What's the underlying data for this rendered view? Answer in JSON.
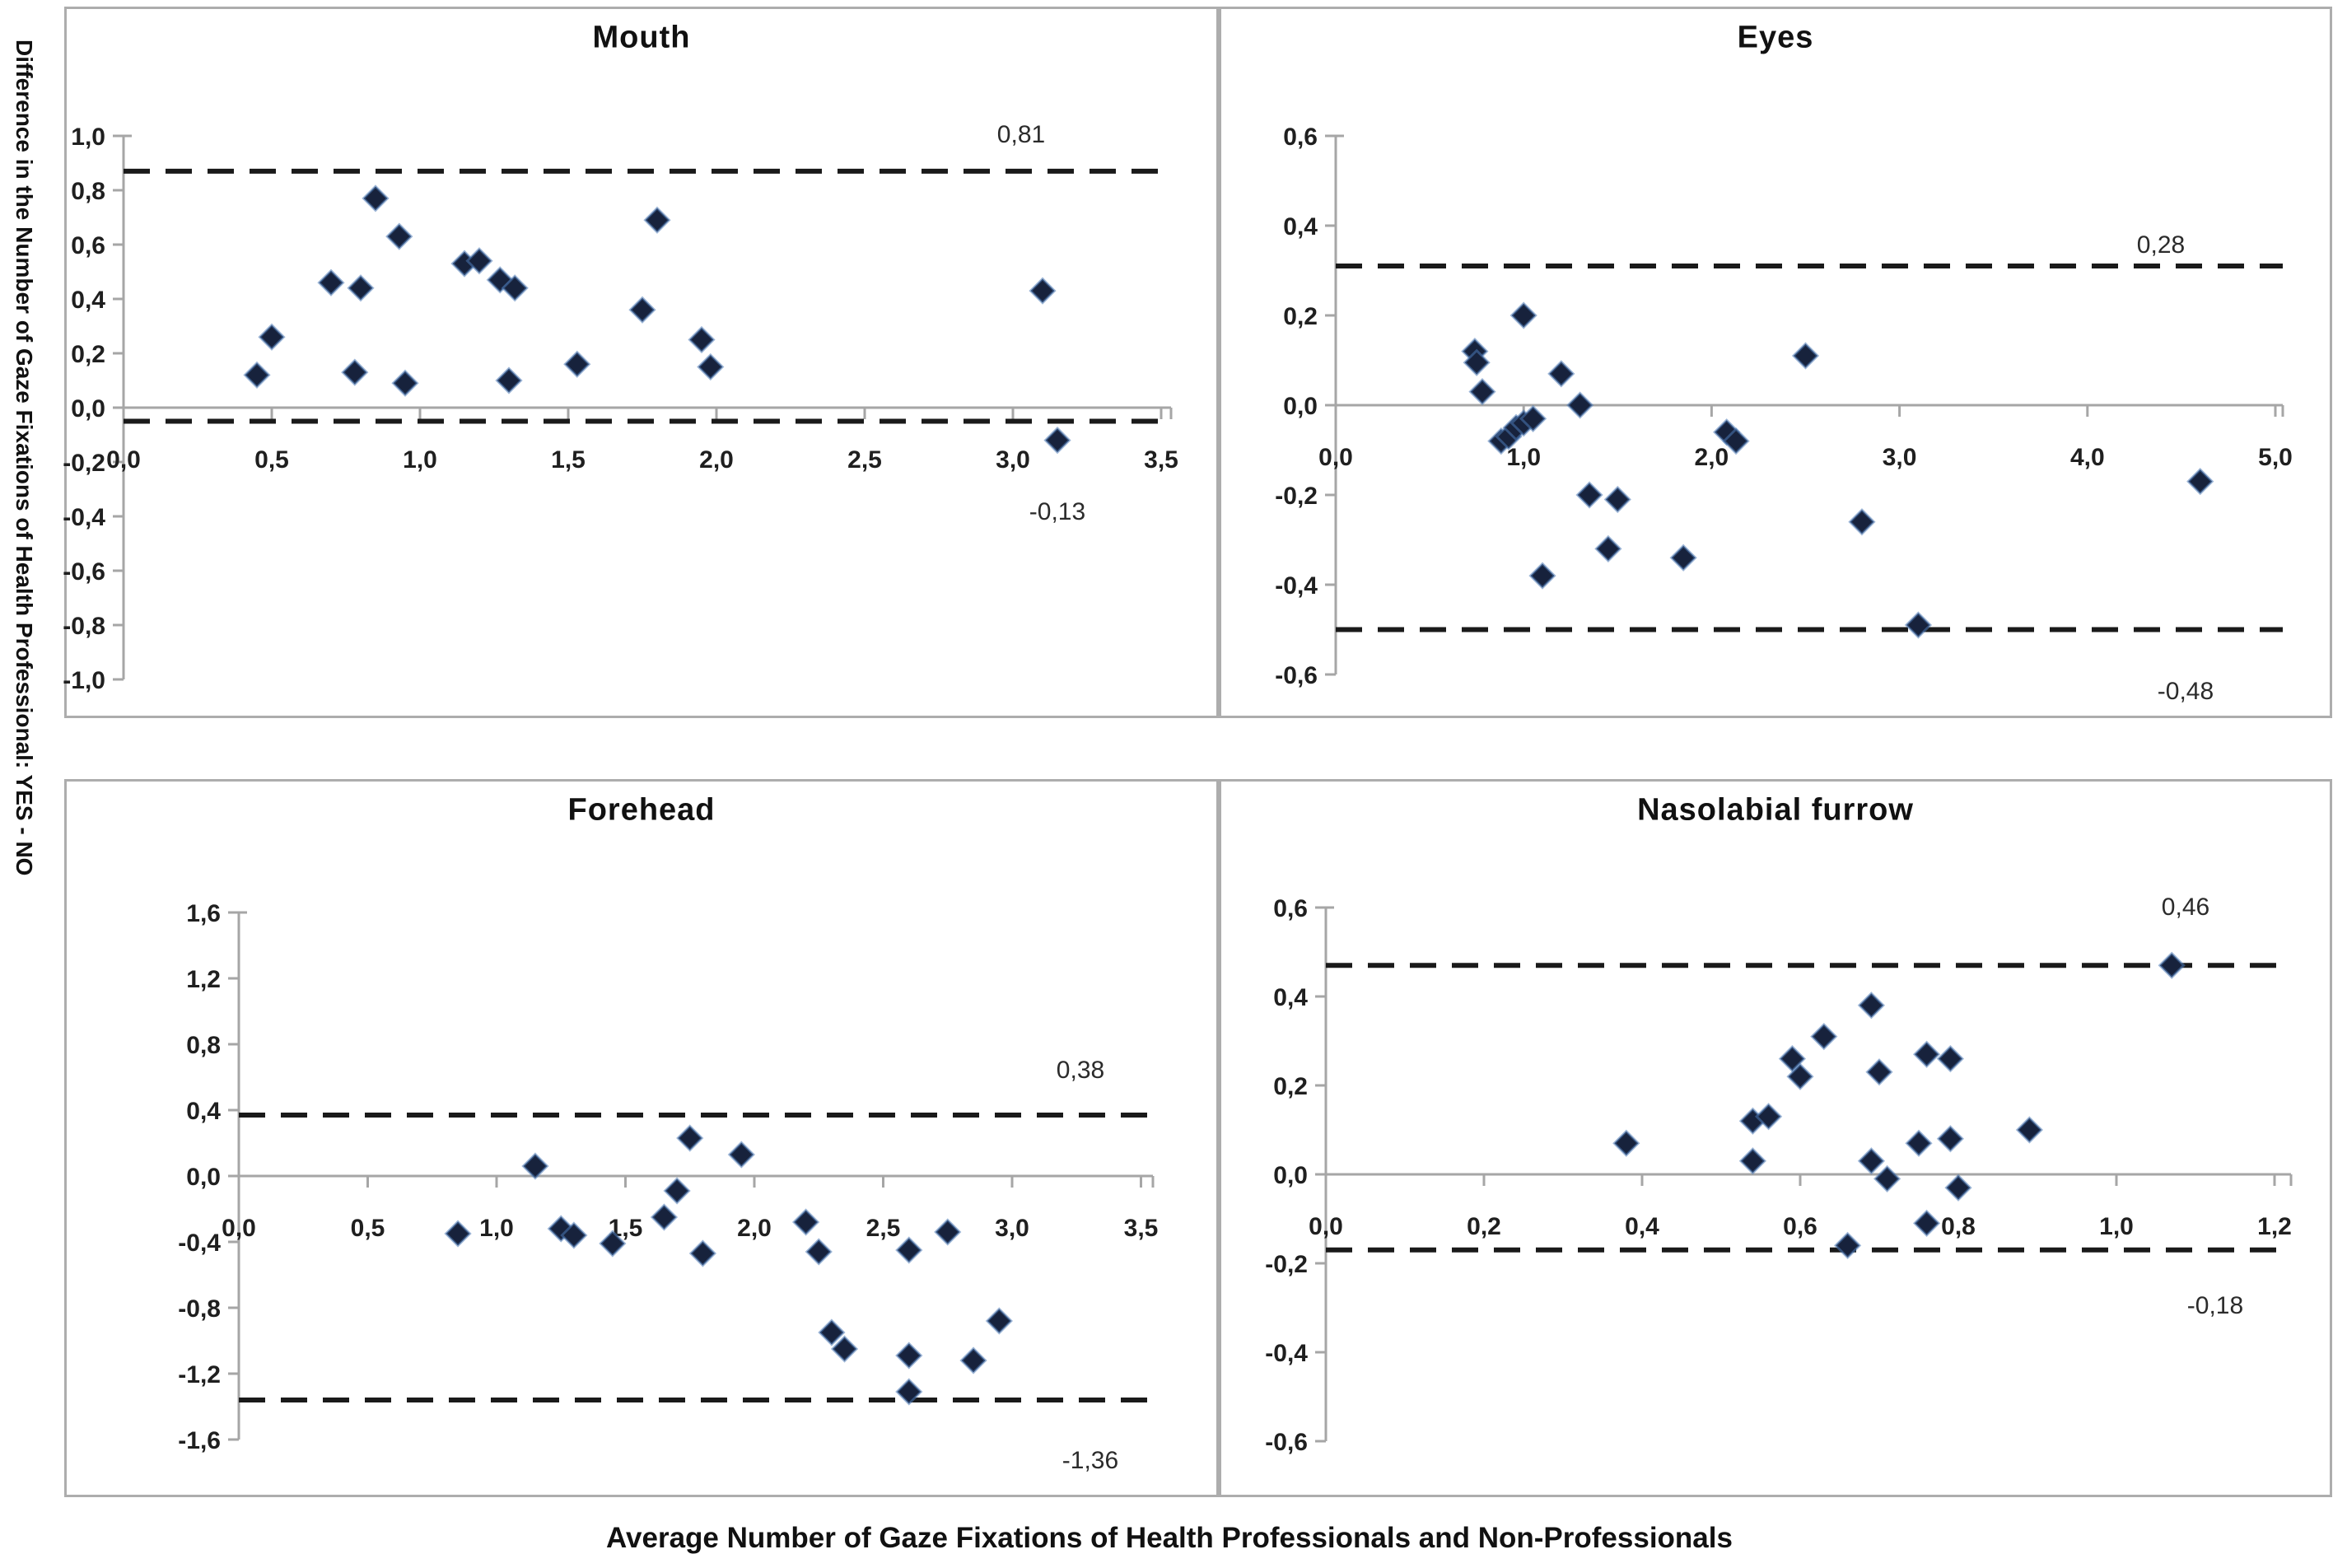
{
  "figure": {
    "y_axis_label": "Difference in the Number of Gaze Fixations of Health Professional: YES - NO",
    "x_axis_label": "Average Number of Gaze Fixations of Health Professionals and Non-Professionals",
    "marker_shape": "diamond",
    "marker_color": "#17223c",
    "marker_halo_color": "#4a79b5",
    "dashed_line_color": "#1a1a1a",
    "axis_color": "#a6a6a6",
    "decimal_separator": "comma"
  },
  "chart_data": [
    {
      "type": "scatter",
      "title": "Mouth",
      "x_axis": {
        "min": 0.0,
        "max": 3.5,
        "step": 0.5
      },
      "y_axis": {
        "min": -1.0,
        "max": 1.0,
        "step": 0.2
      },
      "x_ticks": [
        "0,0",
        "0,5",
        "1,0",
        "1,5",
        "2,0",
        "2,5",
        "3,0",
        "3,5"
      ],
      "y_ticks": [
        "1,0",
        "0,8",
        "0,6",
        "0,4",
        "0,2",
        "0,0",
        "-0,2",
        "-0,4",
        "-0,6",
        "-0,8",
        "-1,0"
      ],
      "mean_line": 0.0,
      "upper_limit": {
        "value": 0.81,
        "label": "0,81",
        "line_y": 0.87
      },
      "lower_limit": {
        "value": -0.13,
        "label": "-0,13",
        "line_y": -0.05
      },
      "points": [
        [
          0.45,
          0.12
        ],
        [
          0.5,
          0.26
        ],
        [
          0.7,
          0.46
        ],
        [
          0.78,
          0.13
        ],
        [
          0.8,
          0.44
        ],
        [
          0.85,
          0.77
        ],
        [
          0.93,
          0.63
        ],
        [
          0.95,
          0.09
        ],
        [
          1.15,
          0.53
        ],
        [
          1.2,
          0.54
        ],
        [
          1.27,
          0.47
        ],
        [
          1.32,
          0.44
        ],
        [
          1.3,
          0.1
        ],
        [
          1.53,
          0.16
        ],
        [
          1.75,
          0.36
        ],
        [
          1.8,
          0.69
        ],
        [
          1.95,
          0.25
        ],
        [
          1.98,
          0.15
        ],
        [
          3.1,
          0.43
        ],
        [
          3.15,
          -0.12
        ]
      ]
    },
    {
      "type": "scatter",
      "title": "Eyes",
      "x_axis": {
        "min": 0.0,
        "max": 5.0,
        "step": 1.0
      },
      "y_axis": {
        "min": -0.6,
        "max": 0.6,
        "step": 0.2
      },
      "x_ticks": [
        "0,0",
        "1,0",
        "2,0",
        "3,0",
        "4,0",
        "5,0"
      ],
      "y_ticks": [
        "0,6",
        "0,4",
        "0,2",
        "0,0",
        "-0,2",
        "-0,4",
        "-0,6"
      ],
      "mean_line": 0.0,
      "upper_limit": {
        "value": 0.28,
        "label": "0,28",
        "line_y": 0.31
      },
      "lower_limit": {
        "value": -0.48,
        "label": "-0,48",
        "line_y": -0.5
      },
      "points": [
        [
          0.74,
          0.12
        ],
        [
          0.75,
          0.095
        ],
        [
          0.78,
          0.03
        ],
        [
          1.0,
          0.2
        ],
        [
          0.88,
          -0.08
        ],
        [
          0.92,
          -0.07
        ],
        [
          0.96,
          -0.05
        ],
        [
          1.0,
          -0.04
        ],
        [
          1.05,
          -0.03
        ],
        [
          1.2,
          0.07
        ],
        [
          1.3,
          0.0
        ],
        [
          1.1,
          -0.38
        ],
        [
          1.35,
          -0.2
        ],
        [
          1.5,
          -0.21
        ],
        [
          1.45,
          -0.32
        ],
        [
          1.85,
          -0.34
        ],
        [
          2.08,
          -0.06
        ],
        [
          2.13,
          -0.08
        ],
        [
          2.5,
          0.11
        ],
        [
          2.8,
          -0.26
        ],
        [
          3.1,
          -0.49
        ],
        [
          4.6,
          -0.17
        ]
      ]
    },
    {
      "type": "scatter",
      "title": "Forehead",
      "x_axis": {
        "min": 0.0,
        "max": 3.5,
        "step": 0.5
      },
      "y_axis": {
        "min": -1.6,
        "max": 1.6,
        "step": 0.4
      },
      "x_ticks": [
        "0,0",
        "0,5",
        "1,0",
        "1,5",
        "2,0",
        "2,5",
        "3,0",
        "3,5"
      ],
      "y_ticks": [
        "1,6",
        "1,2",
        "0,8",
        "0,4",
        "0,0",
        "-0,4",
        "-0,8",
        "-1,2",
        "-1,6"
      ],
      "mean_line": 0.0,
      "upper_limit": {
        "value": 0.38,
        "label": "0,38",
        "line_y": 0.37
      },
      "lower_limit": {
        "value": -1.36,
        "label": "-1,36",
        "line_y": -1.36
      },
      "points": [
        [
          0.85,
          -0.35
        ],
        [
          1.15,
          0.06
        ],
        [
          1.25,
          -0.32
        ],
        [
          1.3,
          -0.36
        ],
        [
          1.45,
          -0.41
        ],
        [
          1.65,
          -0.25
        ],
        [
          1.7,
          -0.09
        ],
        [
          1.75,
          0.23
        ],
        [
          1.8,
          -0.47
        ],
        [
          1.95,
          0.13
        ],
        [
          2.2,
          -0.28
        ],
        [
          2.25,
          -0.46
        ],
        [
          2.3,
          -0.95
        ],
        [
          2.35,
          -1.05
        ],
        [
          2.6,
          -0.45
        ],
        [
          2.6,
          -1.09
        ],
        [
          2.6,
          -1.31
        ],
        [
          2.75,
          -0.34
        ],
        [
          2.85,
          -1.12
        ],
        [
          2.95,
          -0.88
        ]
      ]
    },
    {
      "type": "scatter",
      "title": "Nasolabial furrow",
      "x_axis": {
        "min": 0.0,
        "max": 1.2,
        "step": 0.2
      },
      "y_axis": {
        "min": -0.6,
        "max": 0.6,
        "step": 0.2
      },
      "x_ticks": [
        "0,0",
        "0,2",
        "0,4",
        "0,6",
        "0,8",
        "1,0",
        "1,2"
      ],
      "y_ticks": [
        "0,6",
        "0,4",
        "0,2",
        "0,0",
        "-0,2",
        "-0,4",
        "-0,6"
      ],
      "mean_line": 0.0,
      "upper_limit": {
        "value": 0.46,
        "label": "0,46",
        "line_y": 0.47
      },
      "lower_limit": {
        "value": -0.18,
        "label": "-0,18",
        "line_y": -0.17
      },
      "points": [
        [
          0.38,
          0.07
        ],
        [
          0.54,
          0.12
        ],
        [
          0.54,
          0.03
        ],
        [
          0.56,
          0.13
        ],
        [
          0.59,
          0.26
        ],
        [
          0.6,
          0.22
        ],
        [
          0.63,
          0.31
        ],
        [
          0.66,
          -0.16
        ],
        [
          0.69,
          0.38
        ],
        [
          0.69,
          0.03
        ],
        [
          0.7,
          0.23
        ],
        [
          0.71,
          -0.01
        ],
        [
          0.75,
          0.07
        ],
        [
          0.76,
          0.27
        ],
        [
          0.76,
          -0.11
        ],
        [
          0.79,
          0.26
        ],
        [
          0.79,
          0.08
        ],
        [
          0.8,
          -0.03
        ],
        [
          0.89,
          0.1
        ],
        [
          1.07,
          0.47
        ]
      ]
    }
  ]
}
